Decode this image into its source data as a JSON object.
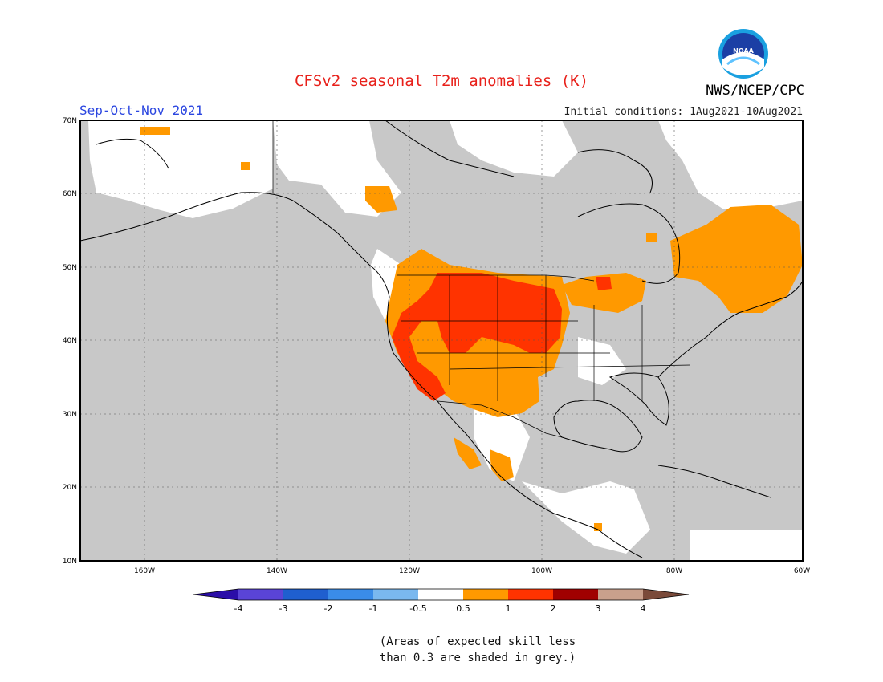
{
  "title": "CFSv2 seasonal T2m anomalies (K)",
  "organization": "NWS/NCEP/CPC",
  "logo_text": "NOAA",
  "season": "Sep-Oct-Nov 2021",
  "initial_conditions": "Initial conditions: 1Aug2021-10Aug2021",
  "lat_labels": [
    "70N",
    "60N",
    "50N",
    "40N",
    "30N",
    "20N",
    "10N"
  ],
  "lon_labels": [
    "160W",
    "140W",
    "120W",
    "100W",
    "80W",
    "60W"
  ],
  "colorbar": {
    "labels": [
      "-4",
      "-3",
      "-2",
      "-1",
      "-0.5",
      "0.5",
      "1",
      "2",
      "3",
      "4"
    ],
    "colors": [
      "#2b0ea8",
      "#5a44d6",
      "#1f5fcf",
      "#3a8ce8",
      "#7ab8ef",
      "#ffffff",
      "#ff9900",
      "#ff3300",
      "#a00000",
      "#c9a08c",
      "#7a4a3a"
    ]
  },
  "colors": {
    "skill_grey": "#c8c8c8",
    "anom_orange": "#ff9900",
    "anom_red": "#ff3300"
  },
  "note_line1": "(Areas of expected skill less",
  "note_line2": "than 0.3 are shaded in grey.)"
}
